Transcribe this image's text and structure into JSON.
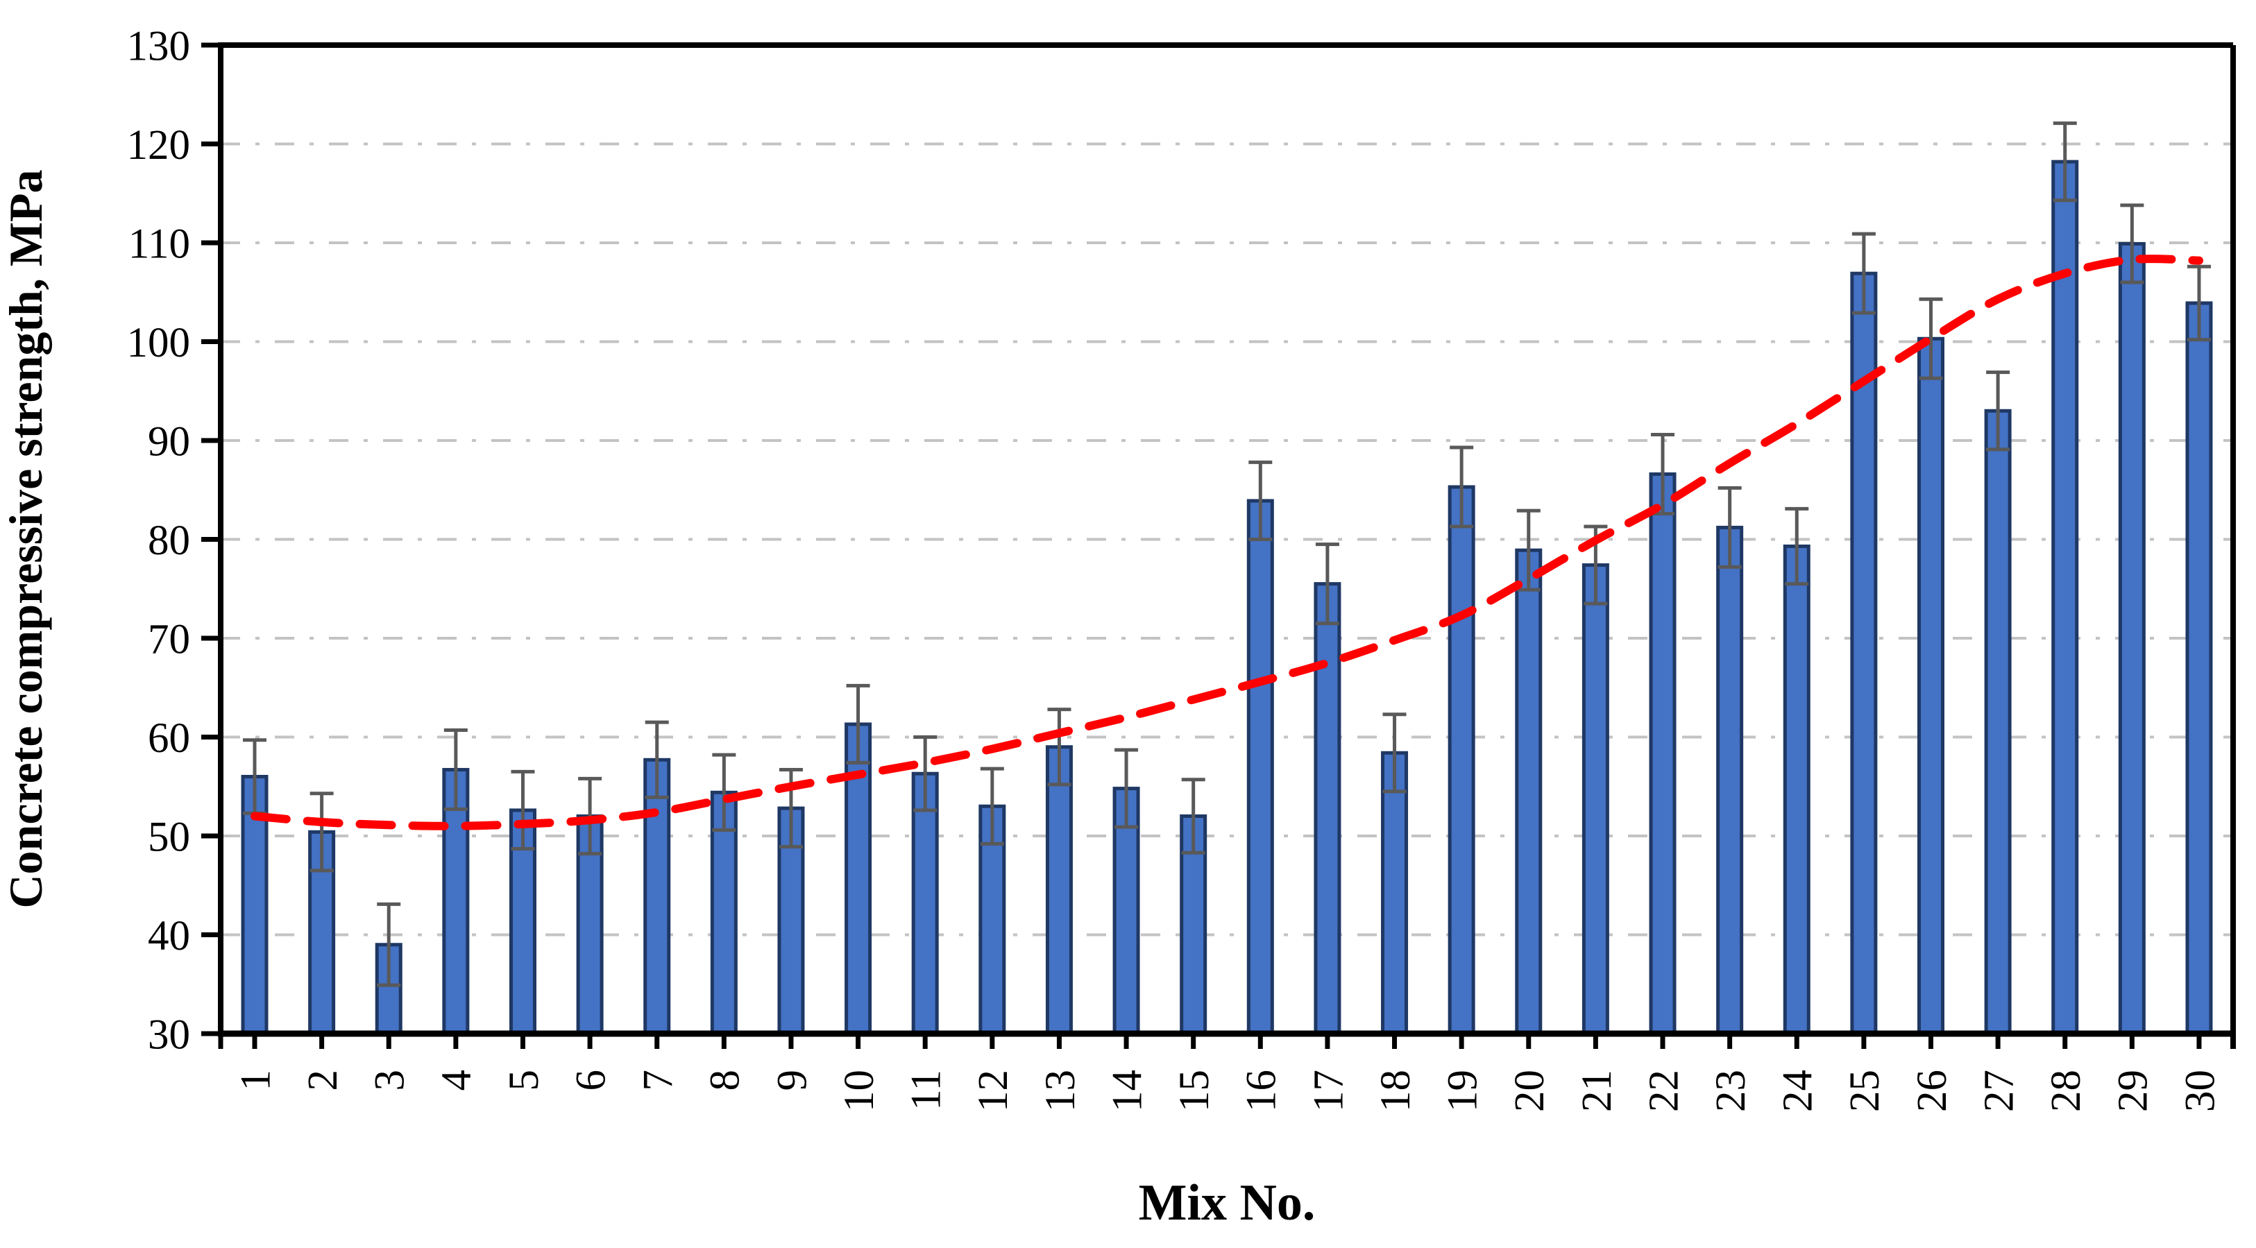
{
  "figure": {
    "background_color": "#FFFFFF",
    "title": ""
  },
  "chart_data": {
    "type": "bar",
    "title": "",
    "xlabel": "Mix No.",
    "ylabel": "Concrete compressive strength, MPa",
    "categories": [
      "1",
      "2",
      "3",
      "4",
      "5",
      "6",
      "7",
      "8",
      "9",
      "10",
      "11",
      "12",
      "13",
      "14",
      "15",
      "16",
      "17",
      "18",
      "19",
      "20",
      "21",
      "22",
      "23",
      "24",
      "25",
      "26",
      "27",
      "28",
      "29",
      "30"
    ],
    "series": [
      {
        "name": "Concrete compressive strength",
        "type": "bar",
        "values": [
          56.0,
          50.4,
          39.0,
          56.7,
          52.6,
          52.0,
          57.7,
          54.4,
          52.8,
          61.3,
          56.3,
          53.0,
          59.0,
          54.8,
          52.0,
          83.9,
          75.5,
          58.4,
          85.3,
          78.9,
          77.4,
          86.6,
          81.2,
          79.3,
          106.9,
          100.3,
          93.0,
          118.2,
          109.9,
          103.9
        ],
        "error_bars": [
          3.7,
          3.9,
          4.1,
          4.0,
          3.9,
          3.8,
          3.8,
          3.8,
          3.9,
          3.9,
          3.7,
          3.8,
          3.8,
          3.9,
          3.7,
          3.9,
          4.0,
          3.9,
          4.0,
          4.0,
          3.9,
          4.0,
          4.0,
          3.8,
          4.0,
          4.0,
          3.9,
          3.9,
          3.9,
          3.7
        ],
        "fill_color": "#4472C4",
        "border_color": "#1F3864",
        "error_bar_color": "#595959"
      },
      {
        "name": "Trend line",
        "type": "dashed-line",
        "values": [
          52.0,
          51.4,
          51.1,
          51.0,
          51.2,
          51.6,
          52.4,
          53.7,
          55.0,
          56.2,
          57.4,
          58.8,
          60.4,
          62.0,
          63.8,
          65.6,
          67.5,
          69.8,
          72.3,
          76.0,
          79.9,
          83.5,
          87.7,
          91.7,
          96.0,
          100.3,
          104.3,
          106.9,
          108.3,
          108.2
        ],
        "color": "#FF0000"
      }
    ],
    "ylim": [
      30,
      130
    ],
    "yticks": [
      30,
      40,
      50,
      60,
      70,
      80,
      90,
      100,
      110,
      120,
      130
    ],
    "grid": "horizontal-dash-dot",
    "gridline_color": "#C3C3C3",
    "axis_color": "#000000",
    "plot_border": "framed",
    "legend_position": "none"
  }
}
